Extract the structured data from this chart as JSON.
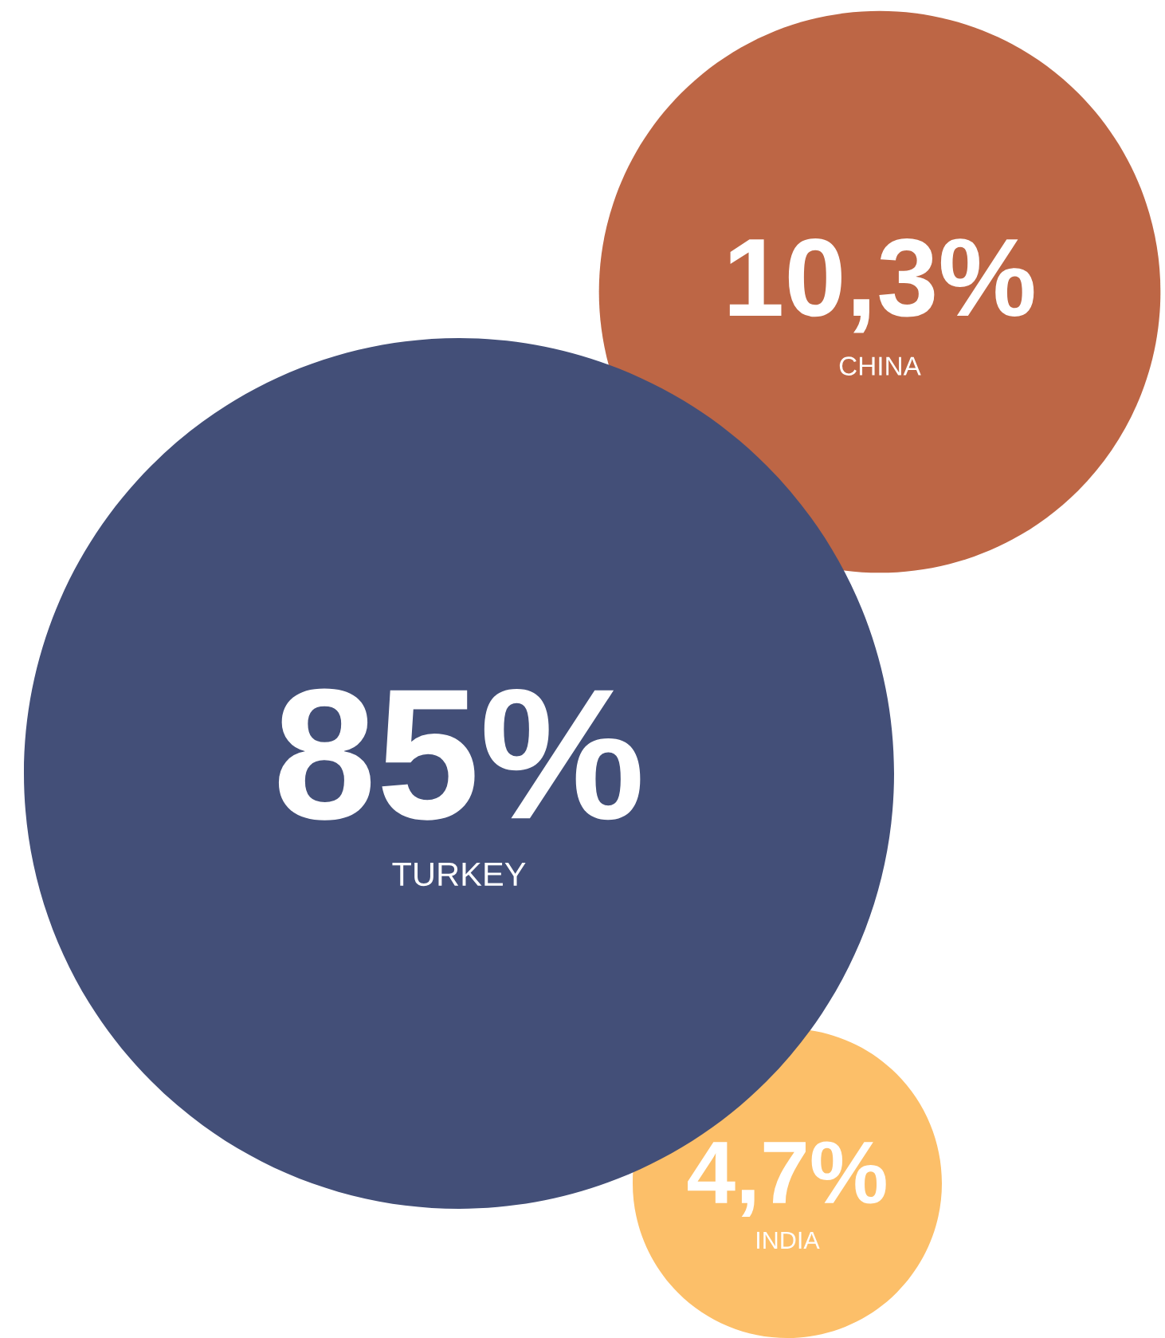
{
  "chart_data": {
    "type": "other",
    "categories": [
      "TURKEY",
      "CHINA",
      "INDIA"
    ],
    "values": [
      85,
      10.3,
      4.7
    ],
    "value_labels": [
      "85%",
      "10,3%",
      "4,7%"
    ],
    "colors": [
      "#434f78",
      "#bd6645",
      "#fcbf69"
    ]
  }
}
